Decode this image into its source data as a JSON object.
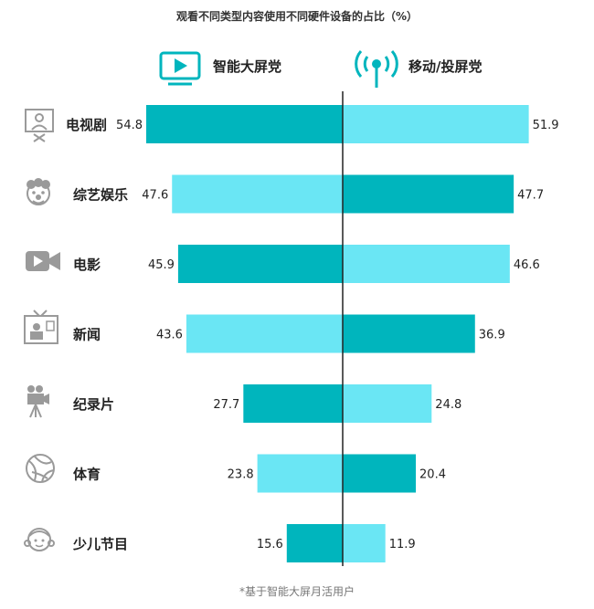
{
  "chart_data": {
    "type": "bar",
    "title": "观看不同类型内容使用不同硬件设备的占比（%）",
    "categories": [
      "电视剧",
      "综艺娱乐",
      "电影",
      "新闻",
      "纪录片",
      "体育",
      "少儿节目"
    ],
    "category_icons": [
      "tv-drama-icon",
      "clown-icon",
      "video-camera-icon",
      "tv-news-icon",
      "film-camera-icon",
      "ball-icon",
      "child-face-icon"
    ],
    "series": [
      {
        "name": "智能大屏党",
        "icon": "tv-icon",
        "values": [
          54.8,
          47.6,
          45.9,
          43.6,
          27.7,
          23.8,
          15.6
        ]
      },
      {
        "name": "移动/投屏党",
        "icon": "signal-tower-icon",
        "values": [
          51.9,
          47.7,
          46.6,
          36.9,
          24.8,
          20.4,
          11.9
        ]
      }
    ],
    "xlim": [
      0,
      60
    ],
    "colors": {
      "dark": "#00B5BD",
      "light": "#6AE6F4",
      "icon_gray": "#9A9A9A",
      "axis": "#222222"
    },
    "footnote": "*基于智能大屏月活用户"
  }
}
